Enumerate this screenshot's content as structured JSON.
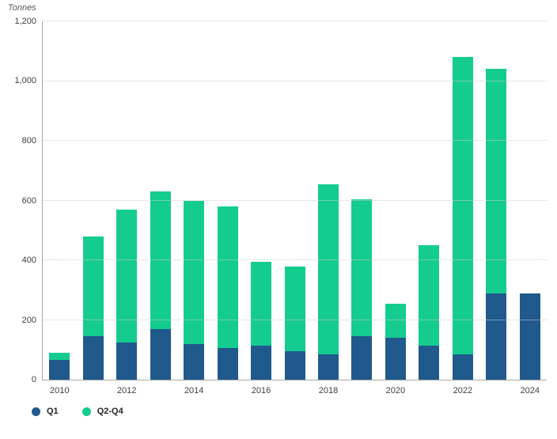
{
  "chart": {
    "axis_title": "Tonnes",
    "legend": [
      {
        "name": "Q1",
        "color": "#20598c"
      },
      {
        "name": "Q2-Q4",
        "color": "#14cc8f"
      }
    ]
  },
  "chart_data": {
    "type": "bar",
    "stacked": true,
    "title": "",
    "xlabel": "",
    "ylabel": "Tonnes",
    "ylim": [
      0,
      1200
    ],
    "grid": "horizontal-dotted",
    "legend_position": "bottom-left",
    "categories": [
      "2010",
      "2011",
      "2012",
      "2013",
      "2014",
      "2015",
      "2016",
      "2017",
      "2018",
      "2019",
      "2020",
      "2021",
      "2022",
      "2023",
      "2024"
    ],
    "x_tick_labels": [
      "2010",
      "2012",
      "2014",
      "2016",
      "2018",
      "2020",
      "2022",
      "2024"
    ],
    "y_ticks": [
      0,
      200,
      400,
      600,
      800,
      1000,
      1200
    ],
    "y_tick_labels": [
      "0",
      "200",
      "400",
      "600",
      "800",
      "1,000",
      "1,200"
    ],
    "series": [
      {
        "name": "Q1",
        "color": "#20598c",
        "values": [
          65,
          145,
          125,
          170,
          120,
          105,
          115,
          95,
          85,
          145,
          140,
          115,
          85,
          290,
          290
        ]
      },
      {
        "name": "Q2-Q4",
        "color": "#14cc8f",
        "values": [
          25,
          335,
          445,
          460,
          480,
          475,
          280,
          285,
          570,
          460,
          115,
          335,
          995,
          750,
          0
        ]
      }
    ],
    "totals": [
      90,
      480,
      570,
      630,
      600,
      580,
      395,
      380,
      655,
      605,
      255,
      450,
      1080,
      1040,
      290
    ]
  }
}
